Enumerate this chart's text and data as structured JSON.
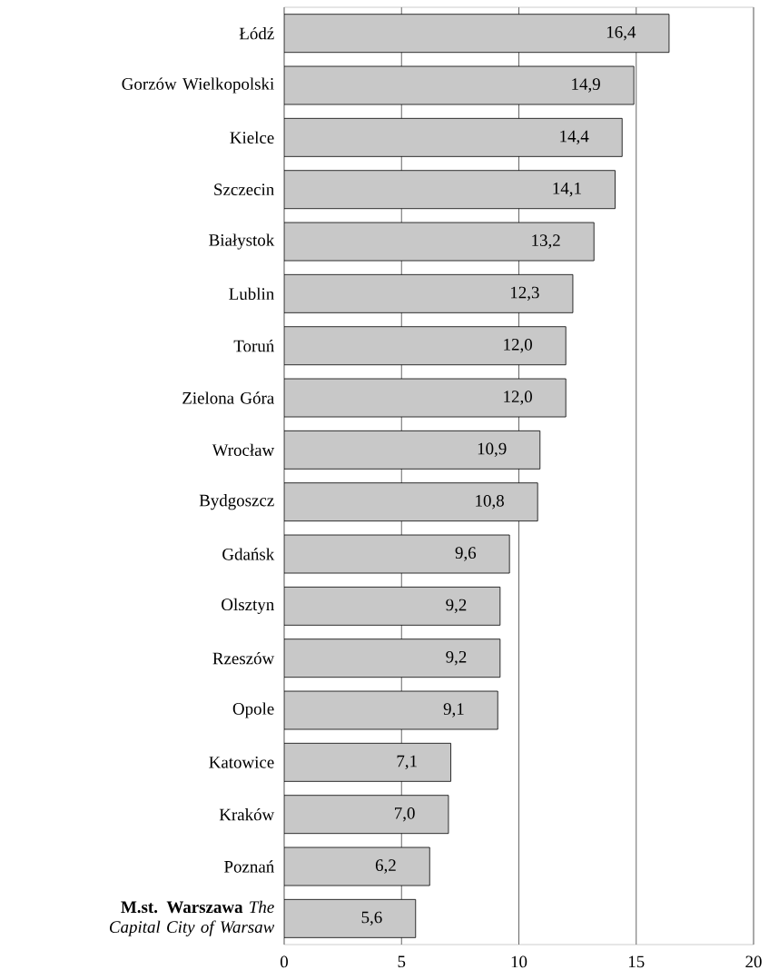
{
  "chart_data": {
    "type": "bar",
    "orientation": "horizontal",
    "categories": [
      "Łódź",
      "Gorzów Wielkopolski",
      "Kielce",
      "Szczecin",
      "Białystok",
      "Lublin",
      "Toruń",
      "Zielona Góra",
      "Wrocław",
      "Bydgoszcz",
      "Gdańsk",
      "Olsztyn",
      "Rzeszów",
      "Opole",
      "Katowice",
      "Kraków",
      "Poznań",
      "**M.st. Warszawa** *The Capital City of Warsaw*"
    ],
    "values": [
      16.4,
      14.9,
      14.4,
      14.1,
      13.2,
      12.3,
      12.0,
      12.0,
      10.9,
      10.8,
      9.6,
      9.2,
      9.2,
      9.1,
      7.1,
      7.0,
      6.2,
      5.6
    ],
    "value_labels": [
      "16,4",
      "14,9",
      "14,4",
      "14,1",
      "13,2",
      "12,3",
      "12,0",
      "12,0",
      "10,9",
      "10,8",
      "9,6",
      "9,2",
      "9,2",
      "9,1",
      "7,1",
      "7,0",
      "6,2",
      "5,6"
    ],
    "color": "#c8c8c8",
    "xlim": [
      0,
      20
    ],
    "xticks": [
      0,
      5,
      10,
      15,
      20
    ],
    "grid": "x"
  }
}
